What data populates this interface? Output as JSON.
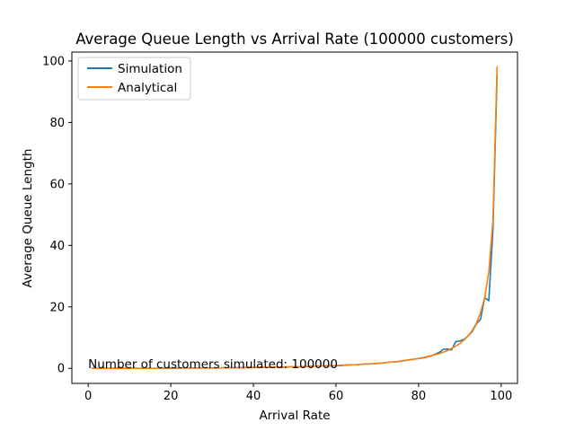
{
  "chart_data": {
    "type": "line",
    "title": "Average Queue Length vs Arrival Rate (100000 customers)",
    "xlabel": "Arrival Rate",
    "ylabel": "Average Queue Length",
    "xlim": [
      -3.95,
      103.95
    ],
    "ylim": [
      -4.9,
      102.9
    ],
    "xticks": [
      0,
      20,
      40,
      60,
      80,
      100
    ],
    "yticks": [
      0,
      20,
      40,
      60,
      80,
      100
    ],
    "xtick_labels": [
      "0",
      "20",
      "40",
      "60",
      "80",
      "100"
    ],
    "ytick_labels": [
      "0",
      "20",
      "40",
      "60",
      "80",
      "100"
    ],
    "grid": false,
    "legend_position": "top-left",
    "x": [
      1,
      3,
      5,
      7,
      9,
      11,
      13,
      15,
      17,
      19,
      21,
      23,
      25,
      27,
      29,
      31,
      33,
      35,
      37,
      39,
      41,
      43,
      45,
      47,
      49,
      51,
      53,
      55,
      57,
      59,
      61,
      63,
      65,
      67,
      69,
      71,
      73,
      75,
      77,
      79,
      81,
      83,
      85,
      86,
      87,
      88,
      89,
      90,
      91,
      92,
      93,
      94,
      95,
      96,
      97,
      98,
      99
    ],
    "series": [
      {
        "name": "Simulation",
        "color": "#1f77b4",
        "values": [
          0.0,
          0.0,
          0.0,
          0.0,
          0.0,
          0.0,
          0.0,
          0.0,
          0.0,
          0.0,
          0.0,
          0.1,
          0.1,
          0.1,
          0.1,
          0.1,
          0.2,
          0.2,
          0.2,
          0.3,
          0.3,
          0.3,
          0.4,
          0.4,
          0.5,
          0.5,
          0.6,
          0.7,
          0.8,
          0.8,
          0.9,
          1.1,
          1.2,
          1.4,
          1.5,
          1.7,
          2.0,
          2.2,
          2.6,
          3.0,
          3.4,
          4.0,
          5.2,
          6.2,
          6.3,
          6.0,
          8.7,
          8.9,
          9.4,
          10.6,
          12.0,
          14.5,
          16.0,
          23.0,
          22.0,
          45.0,
          95.0
        ]
      },
      {
        "name": "Analytical",
        "color": "#ff7f0e",
        "values": [
          0.0,
          0.0,
          0.0,
          0.0,
          0.0,
          0.0,
          0.0,
          0.0,
          0.0,
          0.1,
          0.1,
          0.1,
          0.1,
          0.1,
          0.1,
          0.1,
          0.2,
          0.2,
          0.2,
          0.2,
          0.3,
          0.3,
          0.4,
          0.4,
          0.5,
          0.5,
          0.6,
          0.7,
          0.8,
          0.8,
          1.0,
          1.1,
          1.2,
          1.4,
          1.5,
          1.7,
          2.0,
          2.2,
          2.6,
          3.0,
          3.5,
          4.1,
          4.8,
          5.3,
          5.8,
          6.5,
          7.2,
          8.1,
          9.2,
          10.6,
          12.3,
          14.7,
          18.1,
          23.0,
          31.4,
          48.0,
          98.0
        ]
      }
    ],
    "annotation": "Number of customers simulated: 100000",
    "annotation_point": [
      0,
      0
    ]
  }
}
